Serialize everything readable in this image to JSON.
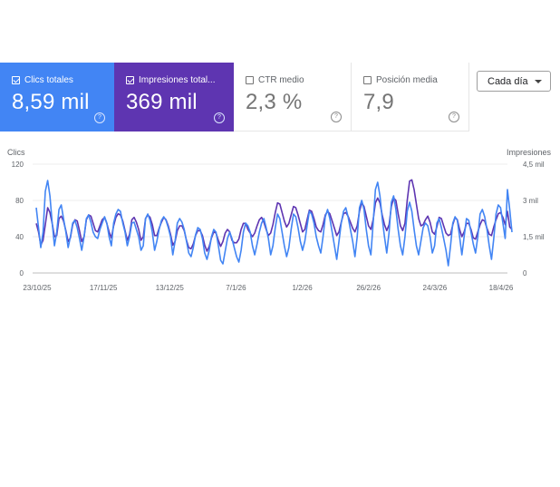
{
  "metrics": [
    {
      "label": "Clics totales",
      "value": "8,59 mil",
      "checked": true,
      "color": "#4285f4"
    },
    {
      "label": "Impresiones total...",
      "value": "369 mil",
      "checked": true,
      "color": "#5e35b1"
    },
    {
      "label": "CTR medio",
      "value": "2,3 %",
      "checked": false
    },
    {
      "label": "Posición media",
      "value": "7,9",
      "checked": false
    }
  ],
  "help_glyph": "?",
  "dropdown": {
    "label": "Cada día"
  },
  "chart_data": {
    "type": "line",
    "y_left": {
      "label": "Clics",
      "ticks": [
        "0",
        "40",
        "80",
        "120"
      ],
      "range": [
        0,
        120
      ]
    },
    "y_right": {
      "label": "Impresiones",
      "ticks": [
        "0",
        "1,5 mil",
        "3 mil",
        "4,5 mil"
      ],
      "range": [
        0,
        4500
      ]
    },
    "x_ticks": [
      "23/10/25",
      "17/11/25",
      "13/12/25",
      "7/1/26",
      "1/2/26",
      "26/2/26",
      "24/3/26",
      "18/4/26"
    ],
    "grid": true,
    "series": [
      {
        "name": "Clics totales",
        "axis": "left",
        "color": "#4285f4",
        "values": [
          72,
          50,
          28,
          45,
          90,
          102,
          85,
          55,
          30,
          45,
          70,
          75,
          60,
          45,
          28,
          40,
          55,
          58,
          50,
          38,
          25,
          40,
          60,
          64,
          56,
          45,
          40,
          38,
          48,
          55,
          62,
          55,
          40,
          30,
          55,
          65,
          70,
          68,
          55,
          45,
          30,
          40,
          55,
          56,
          48,
          40,
          25,
          30,
          60,
          65,
          58,
          45,
          25,
          35,
          48,
          58,
          62,
          58,
          50,
          40,
          20,
          35,
          55,
          60,
          56,
          48,
          35,
          22,
          18,
          28,
          42,
          50,
          48,
          38,
          22,
          15,
          25,
          40,
          48,
          45,
          30,
          14,
          10,
          24,
          38,
          45,
          38,
          28,
          18,
          12,
          25,
          45,
          55,
          52,
          45,
          30,
          20,
          32,
          45,
          55,
          60,
          50,
          38,
          20,
          30,
          50,
          65,
          60,
          45,
          30,
          18,
          28,
          48,
          65,
          62,
          50,
          35,
          25,
          35,
          52,
          68,
          65,
          55,
          40,
          30,
          22,
          40,
          62,
          70,
          60,
          45,
          30,
          15,
          35,
          55,
          68,
          72,
          62,
          48,
          35,
          18,
          40,
          72,
          80,
          70,
          48,
          30,
          20,
          55,
          92,
          100,
          85,
          60,
          40,
          22,
          45,
          78,
          85,
          70,
          48,
          30,
          20,
          40,
          68,
          78,
          68,
          48,
          30,
          20,
          35,
          50,
          55,
          52,
          40,
          22,
          30,
          55,
          60,
          50,
          38,
          25,
          8,
          30,
          55,
          62,
          58,
          40,
          20,
          40,
          60,
          58,
          45,
          32,
          22,
          40,
          65,
          70,
          62,
          48,
          30,
          15,
          38,
          65,
          75,
          72,
          55,
          38,
          92,
          70,
          45
        ]
      },
      {
        "name": "Impresiones",
        "axis": "right",
        "color": "#5e35b1",
        "values": [
          2050,
          1700,
          1150,
          1350,
          2000,
          2700,
          2500,
          2050,
          1500,
          1550,
          2250,
          2350,
          2150,
          1750,
          1300,
          1450,
          2000,
          2200,
          2150,
          1750,
          1300,
          1500,
          2200,
          2400,
          2350,
          2050,
          1750,
          1700,
          1950,
          2200,
          2300,
          2050,
          1700,
          1450,
          1950,
          2300,
          2450,
          2400,
          2150,
          1750,
          1350,
          1600,
          2200,
          2300,
          2100,
          1800,
          1350,
          1500,
          2250,
          2400,
          2300,
          2000,
          1550,
          1550,
          1850,
          2100,
          2300,
          2200,
          1950,
          1600,
          1150,
          1300,
          1750,
          1950,
          1950,
          1750,
          1350,
          1050,
          1000,
          1200,
          1550,
          1750,
          1750,
          1550,
          1150,
          900,
          1100,
          1450,
          1700,
          1650,
          1350,
          1100,
          1300,
          1650,
          1800,
          1700,
          1350,
          1250,
          1250,
          1400,
          1800,
          2050,
          2050,
          1800,
          1650,
          1500,
          1650,
          1950,
          2200,
          2300,
          2100,
          1800,
          1550,
          1650,
          2000,
          2500,
          2900,
          2850,
          2500,
          2150,
          1900,
          2050,
          2400,
          2750,
          2700,
          2400,
          2050,
          1700,
          1800,
          2200,
          2600,
          2550,
          2250,
          1900,
          1750,
          1700,
          2000,
          2400,
          2550,
          2450,
          2150,
          1850,
          1550,
          1700,
          2100,
          2450,
          2500,
          2350,
          2100,
          1850,
          1700,
          1950,
          2550,
          2900,
          2750,
          2350,
          1950,
          1800,
          2200,
          2900,
          3100,
          2900,
          2400,
          2000,
          1750,
          2000,
          2750,
          3100,
          3000,
          2450,
          1950,
          1750,
          2050,
          3000,
          3800,
          3850,
          3450,
          2850,
          2250,
          1950,
          2000,
          2200,
          2350,
          2100,
          1700,
          1600,
          1900,
          2300,
          2250,
          1950,
          1650,
          1550,
          1600,
          2000,
          2300,
          2200,
          1800,
          1500,
          1700,
          2050,
          2050,
          1800,
          1450,
          1400,
          1700,
          2000,
          2200,
          2150,
          1850,
          1600,
          1550,
          1900,
          2200,
          2450,
          2500,
          2300,
          2000,
          2550,
          1900,
          1800
        ]
      }
    ]
  }
}
